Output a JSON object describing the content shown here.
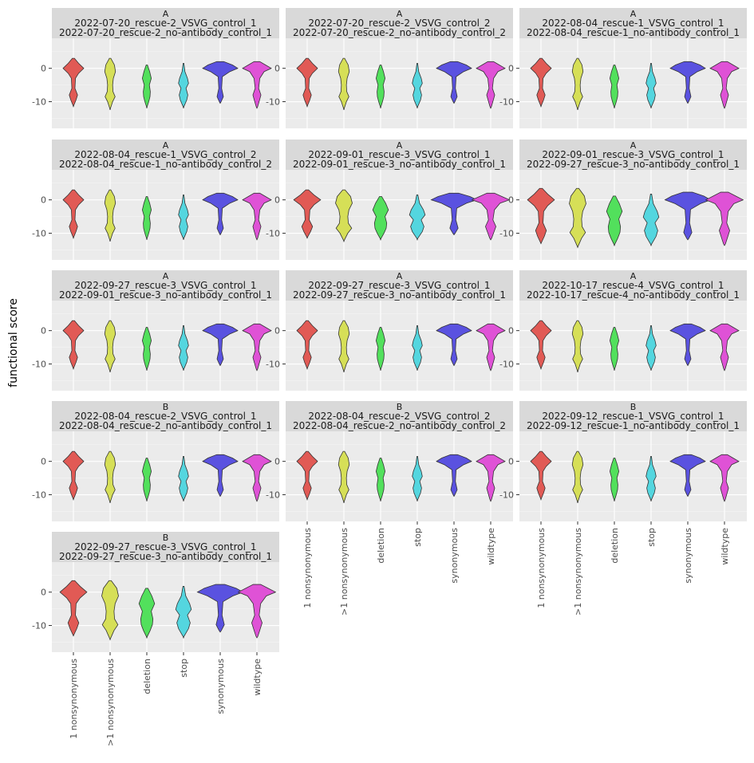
{
  "chart_data": {
    "type": "violin",
    "ylabel": "functional score",
    "xlabel": "",
    "categories": [
      "1 nonsynonymous",
      ">1 nonsynonymous",
      "deletion",
      "stop",
      "synonymous",
      "wildtype"
    ],
    "colors": {
      "1 nonsynonymous": "#e15a55",
      ">1 nonsynonymous": "#d6df57",
      "deletion": "#52e05c",
      "stop": "#54d6df",
      "synonymous": "#5a52e0",
      "wildtype": "#df52d6"
    },
    "ylim": [
      -18,
      9
    ],
    "yticks": [
      0,
      -10
    ],
    "grid": true,
    "panels": [
      {
        "group": "A",
        "label1": "2022-07-20_rescue-2_VSVG_control_1",
        "label2": "2022-07-20_rescue-2_no-antibody_control_1"
      },
      {
        "group": "A",
        "label1": "2022-07-20_rescue-2_VSVG_control_2",
        "label2": "2022-07-20_rescue-2_no-antibody_control_2"
      },
      {
        "group": "A",
        "label1": "2022-08-04_rescue-1_VSVG_control_1",
        "label2": "2022-08-04_rescue-1_no-antibody_control_1"
      },
      {
        "group": "A",
        "label1": "2022-08-04_rescue-1_VSVG_control_2",
        "label2": "2022-08-04_rescue-1_no-antibody_control_2"
      },
      {
        "group": "A",
        "label1": "2022-09-01_rescue-3_VSVG_control_1",
        "label2": "2022-09-01_rescue-3_no-antibody_control_1"
      },
      {
        "group": "A",
        "label1": "2022-09-01_rescue-3_VSVG_control_1",
        "label2": "2022-09-27_rescue-3_no-antibody_control_1"
      },
      {
        "group": "A",
        "label1": "2022-09-27_rescue-3_VSVG_control_1",
        "label2": "2022-09-01_rescue-3_no-antibody_control_1"
      },
      {
        "group": "A",
        "label1": "2022-09-27_rescue-3_VSVG_control_1",
        "label2": "2022-09-27_rescue-3_no-antibody_control_1"
      },
      {
        "group": "A",
        "label1": "2022-10-17_rescue-4_VSVG_control_1",
        "label2": "2022-10-17_rescue-4_no-antibody_control_1"
      },
      {
        "group": "B",
        "label1": "2022-08-04_rescue-2_VSVG_control_1",
        "label2": "2022-08-04_rescue-2_no-antibody_control_1"
      },
      {
        "group": "B",
        "label1": "2022-08-04_rescue-2_VSVG_control_2",
        "label2": "2022-08-04_rescue-2_no-antibody_control_2"
      },
      {
        "group": "B",
        "label1": "2022-09-12_rescue-1_VSVG_control_1",
        "label2": "2022-09-12_rescue-1_no-antibody_control_1"
      },
      {
        "group": "B",
        "label1": "2022-09-27_rescue-3_VSVG_control_1",
        "label2": "2022-09-27_rescue-3_no-antibody_control_1"
      }
    ]
  }
}
